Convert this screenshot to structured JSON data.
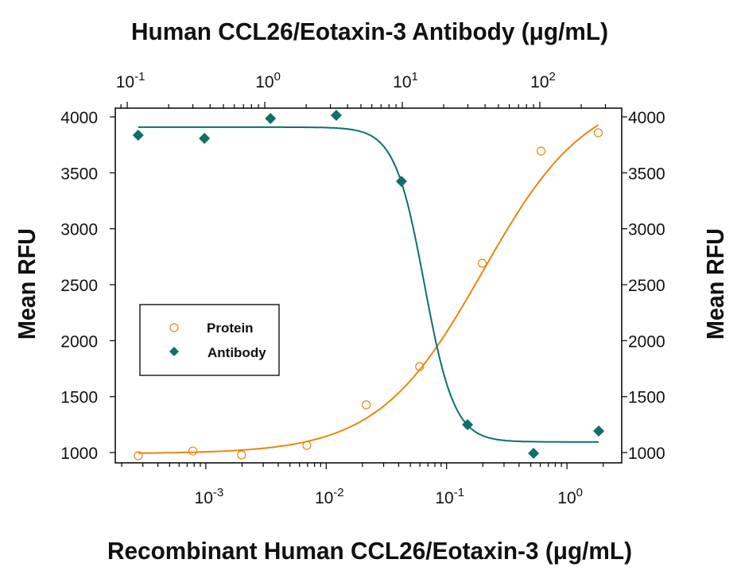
{
  "chart_data": {
    "type": "scatter",
    "title_top": "Human CCL26/Eotaxin-3 Antibody (μg/mL)",
    "xlabel": "Recombinant Human CCL26/Eotaxin-3 (μg/mL)",
    "ylabel": "Mean RFU",
    "ylabel_right": "Mean RFU",
    "x_scale": "log",
    "x_top_scale": "log",
    "xlim": [
      0.000177,
      2.85
    ],
    "xlim_top": [
      0.0818,
      394
    ],
    "ylim": [
      908,
      4078
    ],
    "x_ticks": [
      {
        "base": "10",
        "exp": "-3",
        "value": 0.001
      },
      {
        "base": "10",
        "exp": "-2",
        "value": 0.01
      },
      {
        "base": "10",
        "exp": "-1",
        "value": 0.1
      },
      {
        "base": "10",
        "exp": "0",
        "value": 1
      }
    ],
    "x_top_ticks": [
      {
        "base": "10",
        "exp": "-1",
        "value": 0.1
      },
      {
        "base": "10",
        "exp": "0",
        "value": 1
      },
      {
        "base": "10",
        "exp": "1",
        "value": 10
      },
      {
        "base": "10",
        "exp": "2",
        "value": 100
      }
    ],
    "y_ticks": [
      "1000",
      "1500",
      "2000",
      "2500",
      "3000",
      "3500",
      "4000"
    ],
    "grid": false,
    "legend_position": "center-left",
    "colors": {
      "protein": "#E8870E",
      "antibody": "#0E7068"
    },
    "series": [
      {
        "name": "Protein",
        "axis": "bottom",
        "marker": "open-circle",
        "x": [
          0.000275,
          0.00078,
          0.00198,
          0.0069,
          0.0215,
          0.0597,
          0.198,
          0.61,
          1.82
        ],
        "y": [
          972,
          1014,
          979,
          1064,
          1427,
          1768,
          2692,
          3694,
          3858
        ],
        "fit": {
          "model": "4PL",
          "bottom": 990,
          "top": 4250,
          "ec50": 0.2,
          "hill": 1.0,
          "increasing": true
        }
      },
      {
        "name": "Antibody",
        "axis": "top",
        "marker": "filled-diamond",
        "x": [
          0.12,
          0.364,
          1.1,
          3.31,
          9.86,
          29.8,
          90,
          268
        ],
        "y": [
          3836,
          3808,
          3986,
          4014,
          3424,
          1249,
          993,
          1192
        ],
        "fit": {
          "model": "4PL",
          "bottom": 1095,
          "top": 3908,
          "ec50": 14.5,
          "hill": 4.0,
          "increasing": false
        }
      }
    ]
  }
}
